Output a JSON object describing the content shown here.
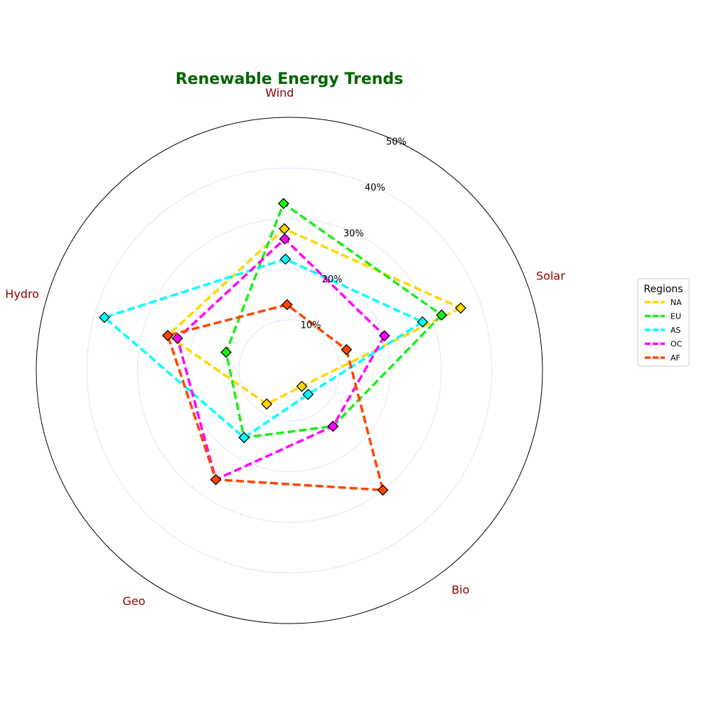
{
  "chart_data": {
    "type": "radar",
    "title": "Renewable Energy Trends",
    "categories": [
      "Solar",
      "Bio",
      "Geo",
      "Hydro",
      "Wind"
    ],
    "rlim": [
      0,
      50
    ],
    "rticks": [
      10,
      20,
      30,
      40,
      50
    ],
    "rtick_labels": [
      "10%",
      "20%",
      "30%",
      "40%",
      "50%"
    ],
    "grid": true,
    "legend": {
      "title": "Regions",
      "placement": "right"
    },
    "series": [
      {
        "name": "NA",
        "color": "#ffd700",
        "values": [
          36,
          4,
          8,
          25,
          28
        ]
      },
      {
        "name": "EU",
        "color": "#1aee1a",
        "values": [
          32,
          14,
          16,
          13,
          33
        ]
      },
      {
        "name": "AS",
        "color": "#00ffff",
        "values": [
          28,
          6,
          16,
          38,
          22
        ]
      },
      {
        "name": "OC",
        "color": "#ff00ff",
        "values": [
          20,
          14,
          26,
          23,
          26
        ]
      },
      {
        "name": "AF",
        "color": "#ff4500",
        "values": [
          12,
          30,
          26,
          25,
          13
        ]
      }
    ]
  }
}
